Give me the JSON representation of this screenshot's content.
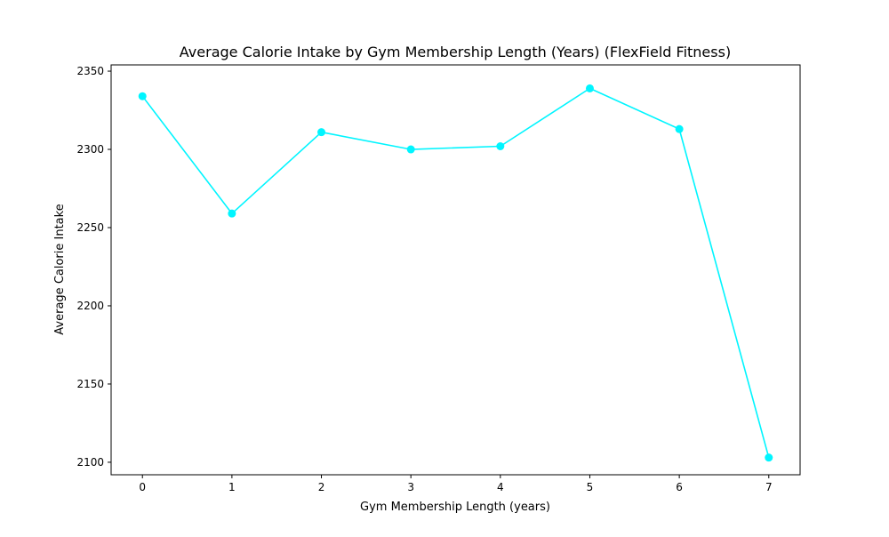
{
  "colors": {
    "line": "#00f5ff",
    "axis": "#000000",
    "background": "#ffffff"
  },
  "chart_data": {
    "type": "line",
    "title": "Average Calorie Intake by Gym Membership Length (Years) (FlexField Fitness)",
    "xlabel": "Gym Membership Length (years)",
    "ylabel": "Average Calorie Intake",
    "x": [
      0,
      1,
      2,
      3,
      4,
      5,
      6,
      7
    ],
    "series": [
      {
        "name": "Average Calorie Intake",
        "values": [
          2334,
          2259,
          2311,
          2300,
          2302,
          2339,
          2313,
          2103
        ],
        "marker": "circle"
      }
    ],
    "xticks": [
      "0",
      "1",
      "2",
      "3",
      "4",
      "5",
      "6",
      "7"
    ],
    "yticks": [
      "2100",
      "2150",
      "2200",
      "2250",
      "2300",
      "2350"
    ],
    "xlim": [
      -0.35,
      7.35
    ],
    "ylim": [
      2092,
      2354
    ],
    "grid": false,
    "legend": "none"
  }
}
